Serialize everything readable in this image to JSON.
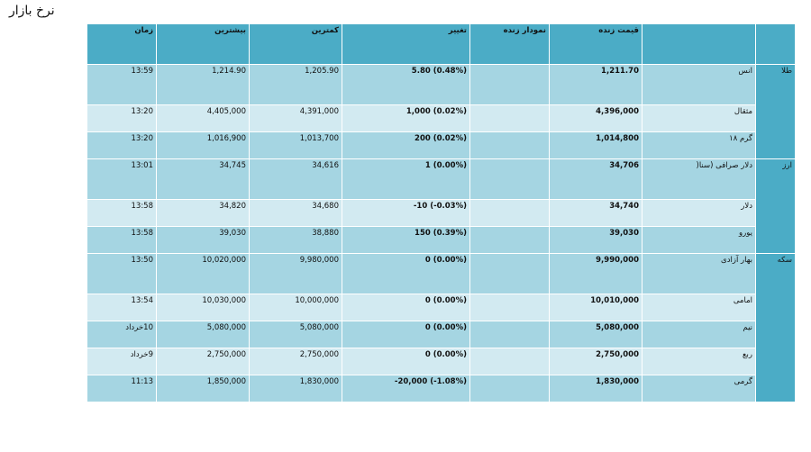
{
  "page_title": "نرخ بازار",
  "headers": {
    "time": "زمان",
    "high": "بیشترین",
    "low": "کمترین",
    "change": "تغییر",
    "chart": "نمودار زنده",
    "price": "قیمت زنده",
    "name": "",
    "category": ""
  },
  "groups": [
    {
      "category": "طلا",
      "rows": [
        {
          "name": "انس",
          "price": "1,211.70",
          "change": "5.80 (0.48%)",
          "low": "1,205.90",
          "high": "1,214.90",
          "time": "13:59"
        },
        {
          "name": "مثقال",
          "price": "4,396,000",
          "change": "1,000 (0.02%)",
          "low": "4,391,000",
          "high": "4,405,000",
          "time": "13:20"
        },
        {
          "name": "گرم ۱۸",
          "price": "1,014,800",
          "change": "200 (0.02%)",
          "low": "1,013,700",
          "high": "1,016,900",
          "time": "13:20"
        }
      ]
    },
    {
      "category": "ارز",
      "rows": [
        {
          "name": "دلار صرافی (سنا(",
          "price": "34,706",
          "change": "1 (0.00%)",
          "low": "34,616",
          "high": "34,745",
          "time": "13:01"
        },
        {
          "name": "دلار",
          "price": "34,740",
          "change": "-10 (-0.03%)",
          "low": "34,680",
          "high": "34,820",
          "time": "13:58"
        },
        {
          "name": "یورو",
          "price": "39,030",
          "change": "150 (0.39%)",
          "low": "38,880",
          "high": "39,030",
          "time": "13:58"
        }
      ]
    },
    {
      "category": "سکه",
      "rows": [
        {
          "name": "بهار آزادی",
          "price": "9,990,000",
          "change": "0 (0.00%)",
          "low": "9,980,000",
          "high": "10,020,000",
          "time": "13:50"
        },
        {
          "name": "امامی",
          "price": "10,010,000",
          "change": "0 (0.00%)",
          "low": "10,000,000",
          "high": "10,030,000",
          "time": "13:54"
        },
        {
          "name": "نیم",
          "price": "5,080,000",
          "change": "0 (0.00%)",
          "low": "5,080,000",
          "high": "5,080,000",
          "time": "10خرداد"
        },
        {
          "name": "ربع",
          "price": "2,750,000",
          "change": "0 (0.00%)",
          "low": "2,750,000",
          "high": "2,750,000",
          "time": "9خرداد"
        },
        {
          "name": "گرمی",
          "price": "1,830,000",
          "change": "-20,000 (-1.08%)",
          "low": "1,830,000",
          "high": "1,850,000",
          "time": "11:13"
        }
      ]
    }
  ]
}
